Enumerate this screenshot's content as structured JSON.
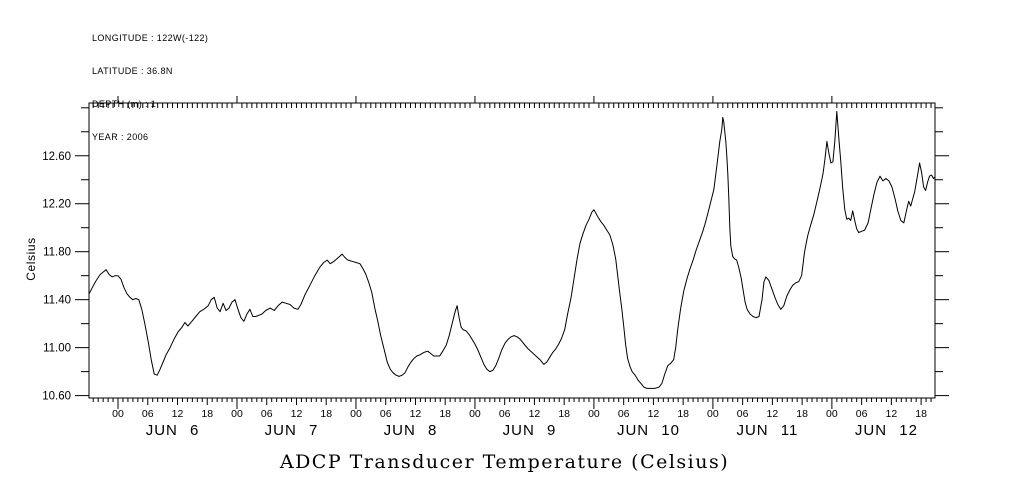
{
  "header": {
    "lines": [
      "LONGITUDE : 122W(-122)",
      "LATITUDE : 36.8N",
      "DEPTH (m) : 1",
      "YEAR : 2006"
    ]
  },
  "chart_data": {
    "type": "line",
    "title": "ADCP Transducer Temperature (Celsius)",
    "ylabel": "Celsius",
    "background": "#ffffff",
    "ink": "#000000",
    "grid": false,
    "legend": false,
    "x_axis": {
      "day_labels": [
        "JUN 6",
        "JUN 7",
        "JUN 8",
        "JUN 9",
        "JUN 10",
        "JUN 11",
        "JUN 12"
      ],
      "hour_labels": [
        "00",
        "06",
        "12",
        "18"
      ],
      "hour_label_step": 6,
      "minor_tick_hours": 1,
      "range_hours": [
        -5.85,
        164.8
      ]
    },
    "y_axis": {
      "tick_labels": [
        "10.60",
        "11.00",
        "11.40",
        "11.80",
        "12.20",
        "12.60"
      ],
      "minor_step": 0.2,
      "range": [
        10.58,
        13.04
      ]
    },
    "series": [
      {
        "name": "ADCP transducer temperature",
        "unit": "Celsius",
        "points": [
          [
            -5.8,
            11.45
          ],
          [
            -5.2,
            11.5
          ],
          [
            -4.4,
            11.56
          ],
          [
            -3.6,
            11.61
          ],
          [
            -3.0,
            11.63
          ],
          [
            -2.4,
            11.65
          ],
          [
            -1.8,
            11.61
          ],
          [
            -1.2,
            11.59
          ],
          [
            -0.6,
            11.6
          ],
          [
            0,
            11.6
          ],
          [
            0.6,
            11.57
          ],
          [
            1.2,
            11.5
          ],
          [
            1.8,
            11.45
          ],
          [
            2.4,
            11.42
          ],
          [
            3.0,
            11.4
          ],
          [
            3.6,
            11.41
          ],
          [
            4.2,
            11.4
          ],
          [
            4.8,
            11.32
          ],
          [
            5.4,
            11.2
          ],
          [
            6.1,
            11.05
          ],
          [
            6.7,
            10.9
          ],
          [
            7.3,
            10.78
          ],
          [
            7.9,
            10.77
          ],
          [
            8.5,
            10.82
          ],
          [
            9.1,
            10.88
          ],
          [
            9.7,
            10.94
          ],
          [
            10.5,
            11.0
          ],
          [
            11.3,
            11.07
          ],
          [
            12.1,
            11.13
          ],
          [
            12.9,
            11.17
          ],
          [
            13.5,
            11.21
          ],
          [
            14.1,
            11.18
          ],
          [
            14.9,
            11.22
          ],
          [
            15.7,
            11.26
          ],
          [
            16.5,
            11.3
          ],
          [
            17.3,
            11.32
          ],
          [
            18.2,
            11.35
          ],
          [
            18.8,
            11.4
          ],
          [
            19.4,
            11.42
          ],
          [
            20.0,
            11.33
          ],
          [
            20.6,
            11.3
          ],
          [
            21.2,
            11.37
          ],
          [
            21.8,
            11.31
          ],
          [
            22.4,
            11.33
          ],
          [
            23.0,
            11.38
          ],
          [
            23.6,
            11.4
          ],
          [
            24.2,
            11.32
          ],
          [
            24.8,
            11.25
          ],
          [
            25.4,
            11.22
          ],
          [
            26.0,
            11.28
          ],
          [
            26.6,
            11.32
          ],
          [
            27.2,
            11.26
          ],
          [
            27.8,
            11.26
          ],
          [
            28.4,
            11.27
          ],
          [
            29.0,
            11.28
          ],
          [
            29.8,
            11.31
          ],
          [
            30.7,
            11.33
          ],
          [
            31.5,
            11.31
          ],
          [
            32.3,
            11.35
          ],
          [
            33.1,
            11.38
          ],
          [
            33.9,
            11.37
          ],
          [
            34.7,
            11.36
          ],
          [
            35.5,
            11.33
          ],
          [
            36.3,
            11.32
          ],
          [
            36.9,
            11.36
          ],
          [
            37.7,
            11.44
          ],
          [
            38.7,
            11.52
          ],
          [
            39.7,
            11.6
          ],
          [
            40.7,
            11.67
          ],
          [
            41.5,
            11.71
          ],
          [
            42.2,
            11.73
          ],
          [
            42.8,
            11.7
          ],
          [
            43.6,
            11.72
          ],
          [
            44.4,
            11.75
          ],
          [
            45.2,
            11.78
          ],
          [
            45.8,
            11.75
          ],
          [
            46.4,
            11.73
          ],
          [
            47.2,
            11.72
          ],
          [
            48.0,
            11.71
          ],
          [
            48.8,
            11.7
          ],
          [
            49.4,
            11.66
          ],
          [
            50.0,
            11.61
          ],
          [
            50.6,
            11.54
          ],
          [
            51.2,
            11.46
          ],
          [
            51.8,
            11.33
          ],
          [
            52.4,
            11.22
          ],
          [
            53.0,
            11.1
          ],
          [
            53.6,
            11.0
          ],
          [
            54.3,
            10.88
          ],
          [
            54.9,
            10.82
          ],
          [
            55.5,
            10.79
          ],
          [
            56.1,
            10.77
          ],
          [
            56.7,
            10.76
          ],
          [
            57.3,
            10.77
          ],
          [
            57.9,
            10.79
          ],
          [
            58.5,
            10.84
          ],
          [
            59.1,
            10.88
          ],
          [
            59.7,
            10.91
          ],
          [
            60.3,
            10.93
          ],
          [
            60.9,
            10.94
          ],
          [
            61.7,
            10.96
          ],
          [
            62.5,
            10.97
          ],
          [
            63.1,
            10.95
          ],
          [
            63.7,
            10.93
          ],
          [
            64.3,
            10.93
          ],
          [
            64.9,
            10.93
          ],
          [
            65.5,
            10.97
          ],
          [
            66.2,
            11.02
          ],
          [
            66.8,
            11.1
          ],
          [
            67.4,
            11.2
          ],
          [
            68.0,
            11.3
          ],
          [
            68.4,
            11.35
          ],
          [
            68.8,
            11.25
          ],
          [
            69.2,
            11.17
          ],
          [
            69.6,
            11.15
          ],
          [
            70.2,
            11.14
          ],
          [
            70.8,
            11.11
          ],
          [
            71.4,
            11.07
          ],
          [
            72.0,
            11.03
          ],
          [
            72.6,
            10.98
          ],
          [
            73.2,
            10.92
          ],
          [
            73.8,
            10.86
          ],
          [
            74.4,
            10.82
          ],
          [
            75.0,
            10.8
          ],
          [
            75.6,
            10.81
          ],
          [
            76.2,
            10.85
          ],
          [
            76.8,
            10.91
          ],
          [
            77.4,
            10.98
          ],
          [
            78.1,
            11.04
          ],
          [
            78.7,
            11.07
          ],
          [
            79.3,
            11.09
          ],
          [
            79.9,
            11.1
          ],
          [
            80.5,
            11.09
          ],
          [
            81.1,
            11.07
          ],
          [
            81.9,
            11.03
          ],
          [
            82.7,
            10.99
          ],
          [
            83.5,
            10.96
          ],
          [
            84.3,
            10.93
          ],
          [
            85.1,
            10.9
          ],
          [
            85.9,
            10.86
          ],
          [
            86.5,
            10.88
          ],
          [
            87.1,
            10.92
          ],
          [
            87.7,
            10.96
          ],
          [
            88.3,
            10.99
          ],
          [
            88.9,
            11.03
          ],
          [
            89.5,
            11.08
          ],
          [
            90.1,
            11.15
          ],
          [
            90.7,
            11.28
          ],
          [
            91.4,
            11.42
          ],
          [
            92.0,
            11.58
          ],
          [
            92.6,
            11.74
          ],
          [
            93.2,
            11.87
          ],
          [
            93.8,
            11.95
          ],
          [
            94.4,
            12.02
          ],
          [
            95.0,
            12.07
          ],
          [
            95.6,
            12.13
          ],
          [
            96.0,
            12.15
          ],
          [
            96.4,
            12.12
          ],
          [
            96.8,
            12.09
          ],
          [
            97.4,
            12.05
          ],
          [
            98.0,
            12.02
          ],
          [
            98.6,
            11.98
          ],
          [
            99.2,
            11.94
          ],
          [
            99.8,
            11.86
          ],
          [
            100.4,
            11.74
          ],
          [
            100.8,
            11.6
          ],
          [
            101.2,
            11.46
          ],
          [
            101.6,
            11.33
          ],
          [
            102.0,
            11.18
          ],
          [
            102.4,
            11.02
          ],
          [
            102.8,
            10.91
          ],
          [
            103.3,
            10.84
          ],
          [
            103.7,
            10.8
          ],
          [
            104.3,
            10.77
          ],
          [
            104.9,
            10.73
          ],
          [
            105.5,
            10.7
          ],
          [
            106.1,
            10.67
          ],
          [
            106.7,
            10.66
          ],
          [
            107.5,
            10.66
          ],
          [
            108.3,
            10.66
          ],
          [
            109.1,
            10.67
          ],
          [
            109.7,
            10.7
          ],
          [
            110.3,
            10.78
          ],
          [
            110.9,
            10.85
          ],
          [
            111.5,
            10.87
          ],
          [
            112.1,
            10.9
          ],
          [
            112.5,
            11.0
          ],
          [
            112.9,
            11.15
          ],
          [
            113.5,
            11.33
          ],
          [
            114.1,
            11.47
          ],
          [
            114.8,
            11.58
          ],
          [
            115.4,
            11.66
          ],
          [
            116.0,
            11.73
          ],
          [
            116.6,
            11.81
          ],
          [
            117.2,
            11.88
          ],
          [
            117.8,
            11.95
          ],
          [
            118.4,
            12.03
          ],
          [
            119.0,
            12.12
          ],
          [
            119.6,
            12.22
          ],
          [
            120.2,
            12.32
          ],
          [
            120.8,
            12.52
          ],
          [
            121.4,
            12.72
          ],
          [
            121.8,
            12.82
          ],
          [
            122.0,
            12.92
          ],
          [
            122.2,
            12.88
          ],
          [
            122.6,
            12.72
          ],
          [
            122.8,
            12.6
          ],
          [
            123.0,
            12.45
          ],
          [
            123.2,
            12.25
          ],
          [
            123.4,
            12.0
          ],
          [
            123.6,
            11.85
          ],
          [
            124.0,
            11.76
          ],
          [
            124.4,
            11.74
          ],
          [
            124.8,
            11.73
          ],
          [
            125.2,
            11.67
          ],
          [
            125.7,
            11.58
          ],
          [
            126.1,
            11.48
          ],
          [
            126.5,
            11.38
          ],
          [
            126.9,
            11.32
          ],
          [
            127.5,
            11.28
          ],
          [
            128.1,
            11.26
          ],
          [
            128.7,
            11.25
          ],
          [
            129.3,
            11.26
          ],
          [
            129.9,
            11.4
          ],
          [
            130.3,
            11.55
          ],
          [
            130.7,
            11.59
          ],
          [
            131.3,
            11.56
          ],
          [
            131.9,
            11.49
          ],
          [
            132.5,
            11.42
          ],
          [
            133.1,
            11.36
          ],
          [
            133.7,
            11.32
          ],
          [
            134.3,
            11.35
          ],
          [
            134.9,
            11.43
          ],
          [
            135.5,
            11.48
          ],
          [
            136.1,
            11.52
          ],
          [
            136.7,
            11.54
          ],
          [
            137.3,
            11.55
          ],
          [
            137.9,
            11.6
          ],
          [
            138.5,
            11.8
          ],
          [
            139.1,
            11.93
          ],
          [
            139.7,
            12.02
          ],
          [
            140.3,
            12.1
          ],
          [
            141.0,
            12.22
          ],
          [
            141.6,
            12.33
          ],
          [
            142.2,
            12.45
          ],
          [
            142.6,
            12.57
          ],
          [
            143.0,
            12.72
          ],
          [
            143.4,
            12.62
          ],
          [
            143.8,
            12.54
          ],
          [
            144.2,
            12.55
          ],
          [
            144.6,
            12.73
          ],
          [
            145.0,
            12.97
          ],
          [
            145.4,
            12.75
          ],
          [
            145.8,
            12.55
          ],
          [
            146.2,
            12.32
          ],
          [
            146.6,
            12.15
          ],
          [
            147.0,
            12.07
          ],
          [
            147.4,
            12.08
          ],
          [
            147.8,
            12.06
          ],
          [
            148.2,
            12.14
          ],
          [
            148.6,
            12.06
          ],
          [
            149.0,
            11.99
          ],
          [
            149.4,
            11.96
          ],
          [
            150.0,
            11.97
          ],
          [
            150.6,
            11.98
          ],
          [
            151.3,
            12.04
          ],
          [
            151.9,
            12.16
          ],
          [
            152.5,
            12.28
          ],
          [
            153.1,
            12.38
          ],
          [
            153.7,
            12.43
          ],
          [
            154.3,
            12.39
          ],
          [
            154.9,
            12.41
          ],
          [
            155.5,
            12.39
          ],
          [
            156.1,
            12.34
          ],
          [
            156.7,
            12.25
          ],
          [
            157.3,
            12.14
          ],
          [
            157.9,
            12.06
          ],
          [
            158.5,
            12.04
          ],
          [
            159.1,
            12.15
          ],
          [
            159.5,
            12.22
          ],
          [
            159.9,
            12.18
          ],
          [
            160.3,
            12.24
          ],
          [
            160.7,
            12.3
          ],
          [
            161.3,
            12.44
          ],
          [
            161.7,
            12.54
          ],
          [
            162.1,
            12.46
          ],
          [
            162.5,
            12.34
          ],
          [
            162.9,
            12.31
          ],
          [
            163.3,
            12.38
          ],
          [
            163.7,
            12.43
          ],
          [
            164.1,
            12.44
          ],
          [
            164.5,
            12.41
          ],
          [
            164.7,
            12.42
          ]
        ]
      }
    ]
  }
}
